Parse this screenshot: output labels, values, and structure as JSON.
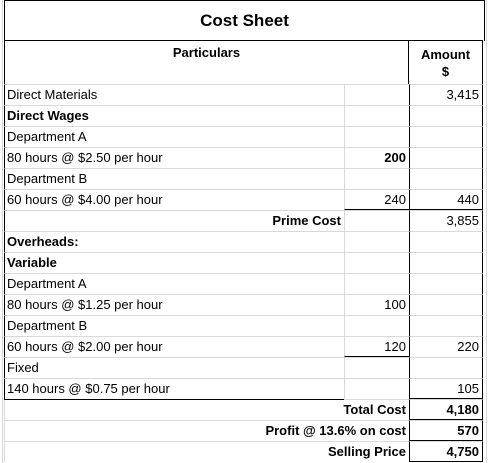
{
  "title": "Cost Sheet",
  "header": {
    "particulars": "Particulars",
    "amount": "Amount",
    "currency": "$"
  },
  "rows": [
    {
      "label": "Direct Materials",
      "sub": "",
      "amt": "3,415"
    },
    {
      "label": "Direct Wages",
      "sub": "",
      "amt": ""
    },
    {
      "label": "Department A",
      "sub": "",
      "amt": ""
    },
    {
      "label": "80 hours @ $2.50 per hour",
      "sub": "200",
      "amt": ""
    },
    {
      "label": "Department B",
      "sub": "",
      "amt": ""
    },
    {
      "label": "60 hours @ $4.00 per hour",
      "sub": "240",
      "amt": "440"
    },
    {
      "label": "Prime Cost",
      "sub": "",
      "amt": "3,855"
    },
    {
      "label": "Overheads:",
      "sub": "",
      "amt": ""
    },
    {
      "label": "Variable",
      "sub": "",
      "amt": ""
    },
    {
      "label": "Department A",
      "sub": "",
      "amt": ""
    },
    {
      "label": "80 hours @ $1.25 per hour",
      "sub": "100",
      "amt": ""
    },
    {
      "label": "Department B",
      "sub": "",
      "amt": ""
    },
    {
      "label": "60 hours @ $2.00 per hour",
      "sub": "120",
      "amt": "220"
    },
    {
      "label": "Fixed",
      "sub": "",
      "amt": ""
    },
    {
      "label": "140 hours @ $0.75 per hour",
      "sub": "",
      "amt": "105"
    },
    {
      "label": "Total Cost",
      "sub": "",
      "amt": "4,180"
    },
    {
      "label": "Profit @ 13.6% on cost",
      "sub": "",
      "amt": "570"
    },
    {
      "label": "Selling Price",
      "sub": "",
      "amt": "4,750"
    }
  ]
}
